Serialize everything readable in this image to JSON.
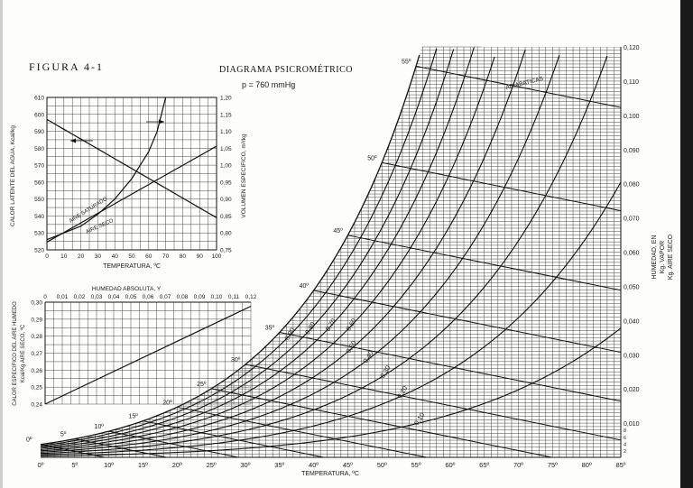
{
  "figure_label": "FIGURA 4-1",
  "title": "DIAGRAMA PSICROMÉTRICO",
  "subtitle": "p = 760 mmHg",
  "colors": {
    "ink": "#111111",
    "paper": "#fdfdfb"
  },
  "chart_data": [
    {
      "type": "line",
      "name": "psychrometric",
      "xlabel": "TEMPERATURA, ºC",
      "ylabel_lines": [
        "HUMEDAD, EN",
        "Kg. VAPOR",
        "Kg. AIRE SECO"
      ],
      "xlim": [
        0,
        85
      ],
      "ylim": [
        0,
        0.12
      ],
      "x_ticks": [
        "0º",
        "5º",
        "10º",
        "15º",
        "20º",
        "25º",
        "30º",
        "35º",
        "40º",
        "45º",
        "50º",
        "55º",
        "60º",
        "65º",
        "70º",
        "75º",
        "80º",
        "85º"
      ],
      "y_ticks": [
        "0,120",
        "0,110",
        "0,100",
        "0,090",
        "0,080",
        "0,070",
        "0,060",
        "0,050",
        "0,040",
        "0,030",
        "0,020",
        "0,010"
      ],
      "y_minor_ticks": [
        "8",
        "6",
        "4",
        "2"
      ],
      "grid": true,
      "relative_humidity_curves": [
        {
          "label": "0,10",
          "rh": 0.1
        },
        {
          "label": "0,20",
          "rh": 0.2
        },
        {
          "label": "0,30",
          "rh": 0.3
        },
        {
          "label": "0,40",
          "rh": 0.4
        },
        {
          "label": "0,50",
          "rh": 0.5
        },
        {
          "label": "0,60",
          "rh": 0.6
        },
        {
          "label": "0,70",
          "rh": 0.7
        },
        {
          "label": "0,80",
          "rh": 0.8
        },
        {
          "label": "0,90",
          "rh": 0.9
        },
        {
          "label": "",
          "rh": 1.0
        }
      ],
      "adiabatic_lines": [
        {
          "label": "0º",
          "t_sat": 0
        },
        {
          "label": "5º",
          "t_sat": 5
        },
        {
          "label": "10º",
          "t_sat": 10
        },
        {
          "label": "15º",
          "t_sat": 15
        },
        {
          "label": "20º",
          "t_sat": 20
        },
        {
          "label": "25º",
          "t_sat": 25
        },
        {
          "label": "30º",
          "t_sat": 30
        },
        {
          "label": "35º",
          "t_sat": 35
        },
        {
          "label": "40º",
          "t_sat": 40
        },
        {
          "label": "45º",
          "t_sat": 45
        },
        {
          "label": "50º",
          "t_sat": 50
        },
        {
          "label": "55º",
          "t_sat": 55
        }
      ],
      "annotations": [
        "ADIABATICAS"
      ]
    },
    {
      "type": "line",
      "name": "inset-latent-volume",
      "xlabel": "TEMPERATURA, ºC",
      "ylabel_left": "CALOR LATENTE DEL AGUA, Kcal/kg",
      "ylabel_right": "VOLUMEN ESPECIFICO, m³/kg",
      "xlim": [
        0,
        100
      ],
      "ylim_left": [
        520,
        610
      ],
      "ylim_right": [
        0.75,
        1.2
      ],
      "x_ticks": [
        "0",
        "10",
        "20",
        "30",
        "40",
        "50",
        "60",
        "70",
        "80",
        "90",
        "100"
      ],
      "y_ticks_left": [
        "610",
        "600",
        "590",
        "580",
        "570",
        "560",
        "550",
        "540",
        "530",
        "520"
      ],
      "y_ticks_right": [
        "1,20",
        "1,15",
        "1,10",
        "1,05",
        "1,00",
        "0,95",
        "0,90",
        "0,85",
        "0,80",
        "0,75"
      ],
      "grid": true,
      "series": [
        {
          "name": "calor latente",
          "axis": "left",
          "x": [
            0,
            100
          ],
          "y": [
            597,
            539
          ]
        },
        {
          "name": "AIRE SATURADO",
          "axis": "right",
          "x": [
            0,
            20,
            30,
            40,
            50,
            60,
            65,
            70
          ],
          "y": [
            0.78,
            0.82,
            0.855,
            0.9,
            0.96,
            1.04,
            1.1,
            1.2
          ]
        },
        {
          "name": "AIRE SECO",
          "axis": "right",
          "x": [
            0,
            100
          ],
          "y": [
            0.773,
            1.056
          ]
        }
      ]
    },
    {
      "type": "line",
      "name": "inset-specific-heat",
      "xlabel": "HUMEDAD ABSOLUTA, Y",
      "ylabel_lines": [
        "CALOR ESPECIFICO DEL AIRE HUMEDO",
        "Kcal/Kg AIRE SECO, ºC"
      ],
      "xlim": [
        0,
        0.12
      ],
      "ylim": [
        0.24,
        0.3
      ],
      "x_ticks": [
        "0",
        "0,01",
        "0,02",
        "0,03",
        "0,04",
        "0,05",
        "0,06",
        "0,07",
        "0,08",
        "0,09",
        "0,10",
        "0,11",
        "0,12"
      ],
      "y_ticks": [
        "0,30",
        "0,29",
        "0,28",
        "0,27",
        "0,26",
        "0,25",
        "0,24"
      ],
      "grid": true,
      "series": [
        {
          "name": "calor especifico",
          "x": [
            0,
            0.12
          ],
          "y": [
            0.24,
            0.2976
          ]
        }
      ]
    }
  ]
}
